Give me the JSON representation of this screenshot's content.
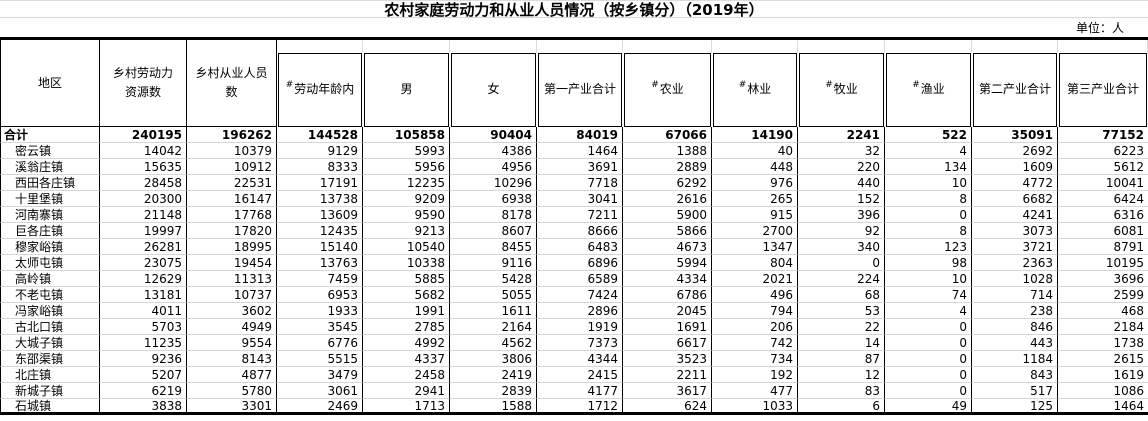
{
  "title": "农村家庭劳动力和从业人员情况（按乡镇分）（2019年）",
  "unit_label": "单位：人",
  "colors": {
    "text": "#000000",
    "table_border": "#000000",
    "gridline": "#d6d6d6",
    "background": "#ffffff"
  },
  "table": {
    "columns": [
      {
        "label": "地区"
      },
      {
        "label": "乡村劳动力资源数"
      },
      {
        "label": "乡村从业人员数"
      },
      {
        "prefix": "#",
        "label": "劳动年龄内"
      },
      {
        "label": "男"
      },
      {
        "label": "女"
      },
      {
        "label": "第一产业合计"
      },
      {
        "prefix": "#",
        "label": "农业"
      },
      {
        "prefix": "#",
        "label": "林业"
      },
      {
        "prefix": "#",
        "label": "牧业"
      },
      {
        "prefix": "#",
        "label": "渔业"
      },
      {
        "label": "第二产业合计"
      },
      {
        "label": "第三产业合计"
      }
    ],
    "total_row": {
      "label": "合计",
      "values": [
        240195,
        196262,
        144528,
        105858,
        90404,
        84019,
        67066,
        14190,
        2241,
        522,
        35091,
        77152
      ]
    },
    "rows": [
      {
        "label": "密云镇",
        "values": [
          14042,
          10379,
          9129,
          5993,
          4386,
          1464,
          1388,
          40,
          32,
          4,
          2692,
          6223
        ]
      },
      {
        "label": "溪翁庄镇",
        "values": [
          15635,
          10912,
          8333,
          5956,
          4956,
          3691,
          2889,
          448,
          220,
          134,
          1609,
          5612
        ]
      },
      {
        "label": "西田各庄镇",
        "values": [
          28458,
          22531,
          17191,
          12235,
          10296,
          7718,
          6292,
          976,
          440,
          10,
          4772,
          10041
        ]
      },
      {
        "label": "十里堡镇",
        "values": [
          20300,
          16147,
          13738,
          9209,
          6938,
          3041,
          2616,
          265,
          152,
          8,
          6682,
          6424
        ]
      },
      {
        "label": "河南寨镇",
        "values": [
          21148,
          17768,
          13609,
          9590,
          8178,
          7211,
          5900,
          915,
          396,
          0,
          4241,
          6316
        ]
      },
      {
        "label": "巨各庄镇",
        "values": [
          19997,
          17820,
          12435,
          9213,
          8607,
          8666,
          5866,
          2700,
          92,
          8,
          3073,
          6081
        ]
      },
      {
        "label": "穆家峪镇",
        "values": [
          26281,
          18995,
          15140,
          10540,
          8455,
          6483,
          4673,
          1347,
          340,
          123,
          3721,
          8791
        ]
      },
      {
        "label": "太师屯镇",
        "values": [
          23075,
          19454,
          13763,
          10338,
          9116,
          6896,
          5994,
          804,
          0,
          98,
          2363,
          10195
        ]
      },
      {
        "label": "高岭镇",
        "values": [
          12629,
          11313,
          7459,
          5885,
          5428,
          6589,
          4334,
          2021,
          224,
          10,
          1028,
          3696
        ]
      },
      {
        "label": "不老屯镇",
        "values": [
          13181,
          10737,
          6953,
          5682,
          5055,
          7424,
          6786,
          496,
          68,
          74,
          714,
          2599
        ]
      },
      {
        "label": "冯家峪镇",
        "values": [
          4011,
          3602,
          1933,
          1991,
          1611,
          2896,
          2045,
          794,
          53,
          4,
          238,
          468
        ]
      },
      {
        "label": "古北口镇",
        "values": [
          5703,
          4949,
          3545,
          2785,
          2164,
          1919,
          1691,
          206,
          22,
          0,
          846,
          2184
        ]
      },
      {
        "label": "大城子镇",
        "values": [
          11235,
          9554,
          6776,
          4992,
          4562,
          7373,
          6617,
          742,
          14,
          0,
          443,
          1738
        ]
      },
      {
        "label": "东邵渠镇",
        "values": [
          9236,
          8143,
          5515,
          4337,
          3806,
          4344,
          3523,
          734,
          87,
          0,
          1184,
          2615
        ]
      },
      {
        "label": "北庄镇",
        "values": [
          5207,
          4877,
          3479,
          2458,
          2419,
          2415,
          2211,
          192,
          12,
          0,
          843,
          1619
        ]
      },
      {
        "label": "新城子镇",
        "values": [
          6219,
          5780,
          3061,
          2941,
          2839,
          4177,
          3617,
          477,
          83,
          0,
          517,
          1086
        ]
      },
      {
        "label": "石城镇",
        "values": [
          3838,
          3301,
          2469,
          1713,
          1588,
          1712,
          624,
          1033,
          6,
          49,
          125,
          1464
        ]
      }
    ]
  }
}
